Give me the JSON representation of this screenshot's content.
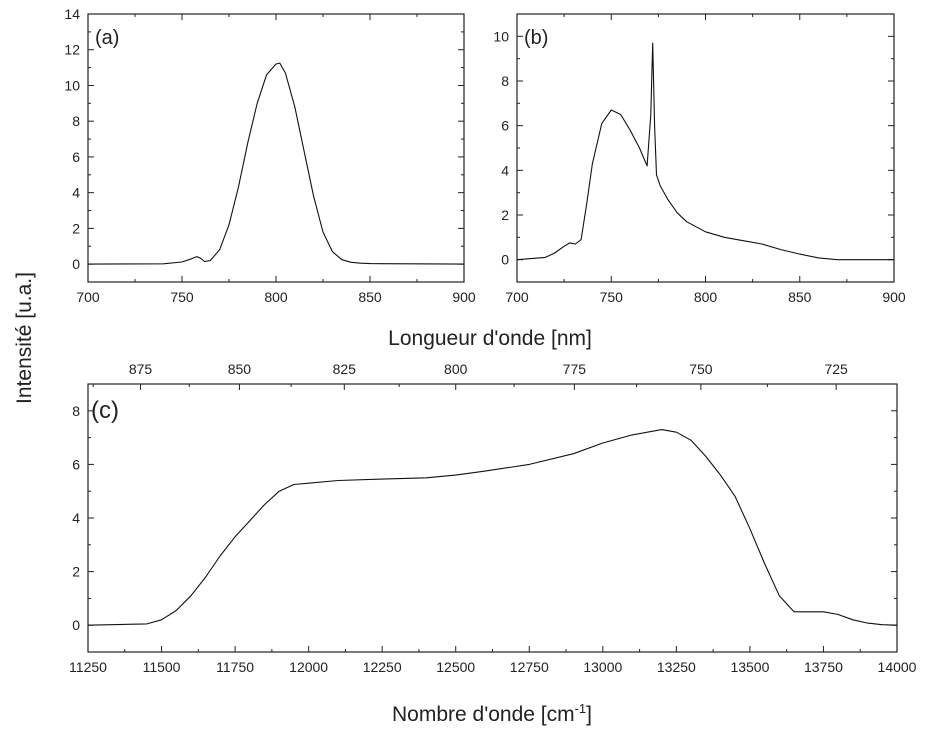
{
  "figure": {
    "ylabel": "Intensité [u.a.]",
    "top_xlabel": "Longueur d'onde [nm]",
    "bottom_xlabel_main": "Nombre d'onde [cm",
    "bottom_xlabel_sup": "-1",
    "bottom_xlabel_end": "]"
  },
  "chart_data": [
    {
      "id": "a",
      "type": "line",
      "panel_label": "(a)",
      "xlim": [
        700,
        900
      ],
      "ylim": [
        -1,
        14
      ],
      "xticks": [
        700,
        750,
        800,
        850,
        900
      ],
      "yticks": [
        0,
        2,
        4,
        6,
        8,
        10,
        12,
        14
      ],
      "series": [
        {
          "x": [
            700,
            740,
            750,
            755,
            758,
            760,
            762,
            765,
            770,
            775,
            780,
            785,
            790,
            795,
            800,
            802,
            805,
            810,
            815,
            820,
            825,
            830,
            835,
            840,
            845,
            850,
            900
          ],
          "y": [
            0,
            0.02,
            0.12,
            0.3,
            0.42,
            0.32,
            0.15,
            0.2,
            0.8,
            2.2,
            4.3,
            6.8,
            9.0,
            10.6,
            11.2,
            11.25,
            10.7,
            8.8,
            6.3,
            3.8,
            1.8,
            0.7,
            0.25,
            0.1,
            0.05,
            0.03,
            0
          ]
        }
      ]
    },
    {
      "id": "b",
      "type": "line",
      "panel_label": "(b)",
      "xlim": [
        700,
        900
      ],
      "ylim": [
        -1,
        11
      ],
      "xticks": [
        700,
        750,
        800,
        850,
        900
      ],
      "yticks": [
        0,
        2,
        4,
        6,
        8,
        10
      ],
      "series": [
        {
          "x": [
            700,
            715,
            720,
            725,
            728,
            731,
            734,
            737,
            740,
            745,
            750,
            755,
            760,
            765,
            769,
            771,
            772,
            773,
            774,
            776,
            780,
            785,
            790,
            800,
            810,
            820,
            830,
            840,
            850,
            860,
            870,
            900
          ],
          "y": [
            0,
            0.1,
            0.3,
            0.6,
            0.75,
            0.7,
            0.9,
            2.5,
            4.3,
            6.1,
            6.7,
            6.5,
            5.8,
            5.0,
            4.2,
            6.5,
            9.7,
            6.0,
            3.8,
            3.3,
            2.7,
            2.1,
            1.7,
            1.25,
            1.0,
            0.85,
            0.7,
            0.45,
            0.25,
            0.08,
            0,
            0
          ]
        }
      ]
    },
    {
      "id": "c",
      "type": "line",
      "panel_label": "(c)",
      "xlim": [
        11250,
        14000
      ],
      "ylim": [
        -1,
        9
      ],
      "xticks": [
        11250,
        11500,
        11750,
        12000,
        12250,
        12500,
        12750,
        13000,
        13250,
        13500,
        13750,
        14000
      ],
      "yticks": [
        0,
        2,
        4,
        6,
        8
      ],
      "top_xticks": [
        875,
        850,
        825,
        800,
        775,
        750,
        725
      ],
      "series": [
        {
          "x": [
            11250,
            11450,
            11500,
            11550,
            11600,
            11650,
            11700,
            11750,
            11800,
            11850,
            11900,
            11950,
            12000,
            12100,
            12250,
            12400,
            12500,
            12600,
            12750,
            12900,
            13000,
            13100,
            13200,
            13250,
            13300,
            13350,
            13400,
            13450,
            13500,
            13550,
            13600,
            13650,
            13700,
            13750,
            13800,
            13850,
            13900,
            13950,
            14000
          ],
          "y": [
            0,
            0.05,
            0.2,
            0.55,
            1.1,
            1.8,
            2.6,
            3.3,
            3.9,
            4.5,
            5.0,
            5.25,
            5.3,
            5.4,
            5.45,
            5.5,
            5.6,
            5.75,
            6.0,
            6.4,
            6.8,
            7.1,
            7.3,
            7.2,
            6.9,
            6.3,
            5.6,
            4.8,
            3.6,
            2.3,
            1.1,
            0.5,
            0.5,
            0.5,
            0.4,
            0.2,
            0.08,
            0.02,
            0
          ]
        }
      ]
    }
  ]
}
